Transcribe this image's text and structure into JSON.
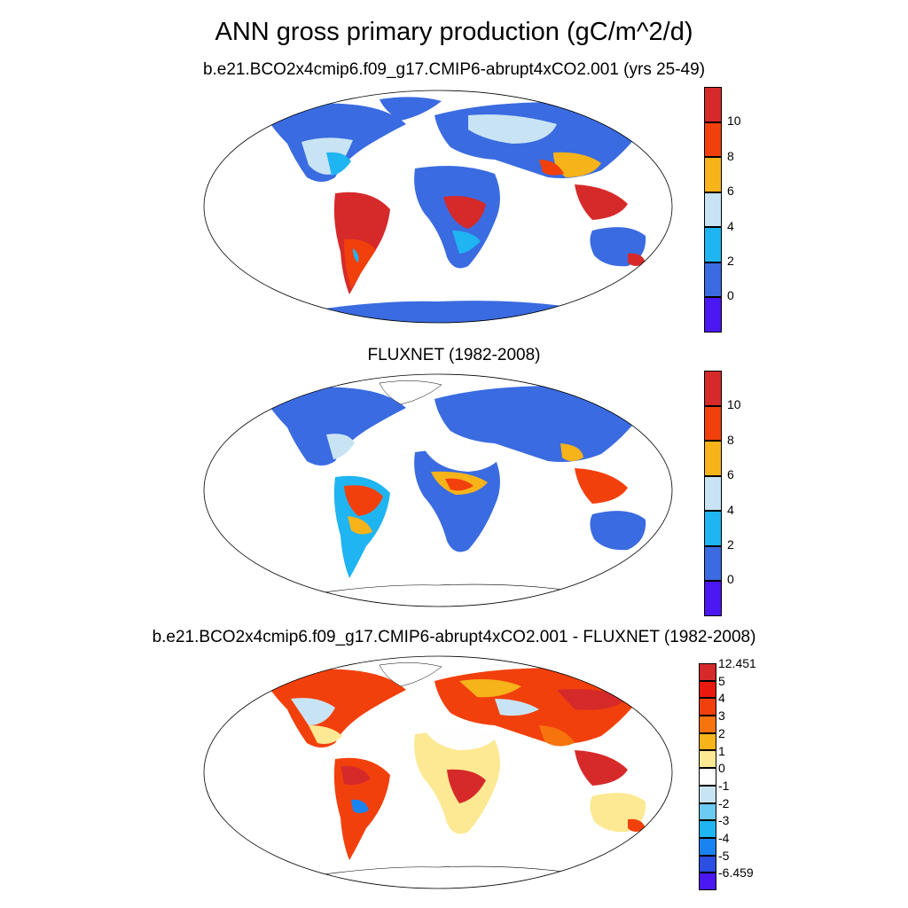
{
  "title": "ANN gross primary production (gC/m^2/d)",
  "panels": [
    {
      "subtitle": "b.e21.BCO2x4cmip6.f09_g17.CMIP6-abrupt4xCO2.001 (yrs 25-49)"
    },
    {
      "subtitle": "FLUXNET (1982-2008)"
    },
    {
      "subtitle": "b.e21.BCO2x4cmip6.f09_g17.CMIP6-abrupt4xCO2.001 - FLUXNET (1982-2008)"
    }
  ],
  "colorbar_main": {
    "labels": [
      "10",
      "8",
      "6",
      "4",
      "2",
      "0"
    ],
    "colors": [
      "#d62a2a",
      "#f2400c",
      "#f7b31a",
      "#c8e4f4",
      "#1fb4f2",
      "#3a6be0",
      "#4b17f2"
    ]
  },
  "colorbar_diff": {
    "labels": [
      "12.451",
      "5",
      "4",
      "3",
      "2",
      "1",
      "0",
      "-1",
      "-2",
      "-3",
      "-4",
      "-5",
      "-6.459"
    ],
    "colors": [
      "#d62a2a",
      "#e8190e",
      "#f2400c",
      "#f7730e",
      "#f7b31a",
      "#fde993",
      "#fefefe",
      "#c8e4f4",
      "#6ccbf2",
      "#1fb4f2",
      "#1a83f2",
      "#2b4fe0",
      "#4b17f2"
    ]
  },
  "map_data": {
    "projection": "robinson",
    "fields": {
      "model": {
        "tropics": "#d62a2a",
        "boreal": "#3a6be0",
        "temperate": "#c8e4f4"
      },
      "obs": {
        "tropics": "#f2400c",
        "boreal": "#3a6be0",
        "desert": "#fefefe"
      },
      "diff": {
        "high_lat": "#f2400c",
        "desert": "#fde993",
        "australia": "#fde993"
      }
    }
  }
}
